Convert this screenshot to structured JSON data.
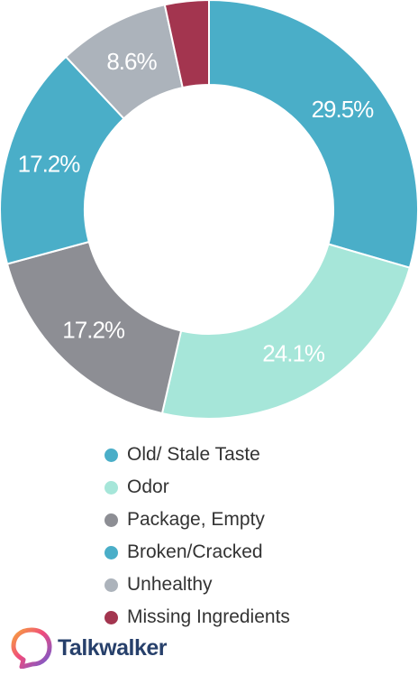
{
  "chart_data": {
    "type": "pie",
    "variant": "donut",
    "categories": [
      "Old/ Stale Taste",
      "Odor",
      "Package, Empty",
      "Broken/Cracked",
      "Unhealthy",
      "Missing Ingredients"
    ],
    "values": [
      29.5,
      24.1,
      17.2,
      17.2,
      8.6,
      3.4
    ],
    "data_labels": [
      "29.5%",
      "24.1%",
      "17.2%",
      "17.2%",
      "8.6%",
      ""
    ],
    "colors": [
      "#4aaec8",
      "#a6e6d9",
      "#8d8e94",
      "#4aaec8",
      "#acb3bb",
      "#a3354f"
    ],
    "legend_position": "bottom"
  },
  "brand": {
    "name": "Talkwalker",
    "logo_icon": "talkwalker-logo-icon"
  }
}
